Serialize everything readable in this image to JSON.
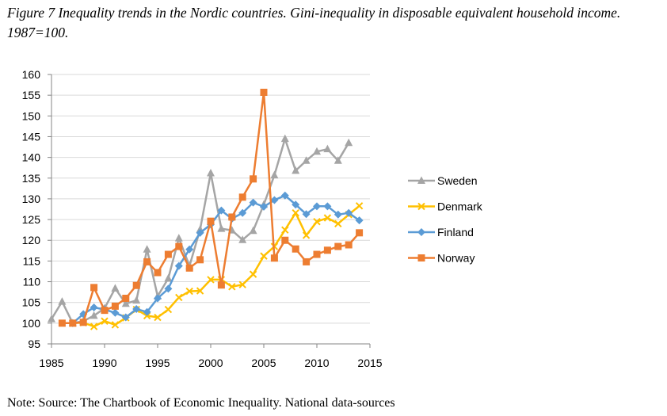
{
  "caption": "Figure 7 Inequality trends in the Nordic countries. Gini-inequality in disposable equivalent household income. 1987=100.",
  "note": "Note: Source: The Chartbook of Economic Inequality. National data-sources",
  "chart_data": {
    "type": "line",
    "title": "",
    "xlabel": "",
    "ylabel": "",
    "xlim": [
      1985,
      2015
    ],
    "ylim": [
      95,
      160
    ],
    "xticks": [
      1985,
      1990,
      1995,
      2000,
      2005,
      2010,
      2015
    ],
    "yticks": [
      95,
      100,
      105,
      110,
      115,
      120,
      125,
      130,
      135,
      140,
      145,
      150,
      155,
      160
    ],
    "grid": "horizontal",
    "legend_position": "right",
    "series": [
      {
        "name": "Sweden",
        "color": "#a5a5a5",
        "marker": "triangle",
        "points": [
          [
            1985,
            101
          ],
          [
            1986,
            105.2
          ],
          [
            1987,
            100
          ],
          [
            1988,
            100.5
          ],
          [
            1989,
            101.8
          ],
          [
            1990,
            103.6
          ],
          [
            1991,
            108.4
          ],
          [
            1992,
            104.7
          ],
          [
            1993,
            105.5
          ],
          [
            1994,
            117.8
          ],
          [
            1995,
            106.5
          ],
          [
            1996,
            110.8
          ],
          [
            1997,
            120.5
          ],
          [
            1998,
            113.8
          ],
          [
            1999,
            122.6
          ],
          [
            2000,
            136.2
          ],
          [
            2001,
            122.8
          ],
          [
            2002,
            122.4
          ],
          [
            2003,
            120.1
          ],
          [
            2004,
            122.3
          ],
          [
            2005,
            128.6
          ],
          [
            2006,
            135.7
          ],
          [
            2007,
            144.5
          ],
          [
            2008,
            136.8
          ],
          [
            2009,
            139.2
          ],
          [
            2010,
            141.4
          ],
          [
            2011,
            142
          ],
          [
            2012,
            139.2
          ],
          [
            2013,
            143.5
          ]
        ]
      },
      {
        "name": "Denmark",
        "color": "#ffc000",
        "marker": "x",
        "points": [
          [
            1987,
            100
          ],
          [
            1988,
            100.1
          ],
          [
            1989,
            99.2
          ],
          [
            1990,
            100.5
          ],
          [
            1991,
            99.6
          ],
          [
            1992,
            101.3
          ],
          [
            1993,
            103.3
          ],
          [
            1994,
            101.8
          ],
          [
            1995,
            101.4
          ],
          [
            1996,
            103.3
          ],
          [
            1997,
            106.2
          ],
          [
            1998,
            107.7
          ],
          [
            1999,
            107.8
          ],
          [
            2000,
            110.5
          ],
          [
            2001,
            110.5
          ],
          [
            2002,
            108.8
          ],
          [
            2003,
            109.3
          ],
          [
            2004,
            111.8
          ],
          [
            2005,
            116.2
          ],
          [
            2006,
            118.5
          ],
          [
            2007,
            122.5
          ],
          [
            2008,
            126.6
          ],
          [
            2009,
            121.2
          ],
          [
            2010,
            124.5
          ],
          [
            2011,
            125.4
          ],
          [
            2012,
            124
          ],
          [
            2013,
            126.2
          ],
          [
            2014,
            128.3
          ]
        ]
      },
      {
        "name": "Finland",
        "color": "#5b9bd5",
        "marker": "diamond",
        "points": [
          [
            1987,
            100
          ],
          [
            1988,
            102.2
          ],
          [
            1989,
            103.8
          ],
          [
            1990,
            103.3
          ],
          [
            1991,
            102.5
          ],
          [
            1992,
            101.4
          ],
          [
            1993,
            103.4
          ],
          [
            1994,
            102.7
          ],
          [
            1995,
            106
          ],
          [
            1996,
            108.3
          ],
          [
            1997,
            113.8
          ],
          [
            1998,
            117.8
          ],
          [
            1999,
            121.8
          ],
          [
            2000,
            123.8
          ],
          [
            2001,
            127.2
          ],
          [
            2002,
            125.2
          ],
          [
            2003,
            126.6
          ],
          [
            2004,
            129.1
          ],
          [
            2005,
            128.1
          ],
          [
            2006,
            129.7
          ],
          [
            2007,
            130.8
          ],
          [
            2008,
            128.6
          ],
          [
            2009,
            126.3
          ],
          [
            2010,
            128.2
          ],
          [
            2011,
            128.2
          ],
          [
            2012,
            126.2
          ],
          [
            2013,
            126.6
          ],
          [
            2014,
            124.8
          ]
        ]
      },
      {
        "name": "Norway",
        "color": "#ed7d31",
        "marker": "square",
        "points": [
          [
            1986,
            100
          ],
          [
            1987,
            100
          ],
          [
            1988,
            100.2
          ],
          [
            1989,
            108.6
          ],
          [
            1990,
            103.1
          ],
          [
            1991,
            104.1
          ],
          [
            1992,
            106
          ],
          [
            1993,
            109.1
          ],
          [
            1994,
            114.8
          ],
          [
            1995,
            112.2
          ],
          [
            1996,
            116.6
          ],
          [
            1997,
            118.5
          ],
          [
            1998,
            113.3
          ],
          [
            1999,
            115.3
          ],
          [
            2000,
            124.6
          ],
          [
            2001,
            109.2
          ],
          [
            2002,
            125.6
          ],
          [
            2003,
            130.4
          ],
          [
            2004,
            134.8
          ],
          [
            2005,
            155.7
          ],
          [
            2006,
            115.7
          ],
          [
            2007,
            120
          ],
          [
            2008,
            117.9
          ],
          [
            2009,
            114.8
          ],
          [
            2010,
            116.6
          ],
          [
            2011,
            117.6
          ],
          [
            2012,
            118.5
          ],
          [
            2013,
            118.9
          ],
          [
            2014,
            121.8
          ]
        ]
      }
    ]
  }
}
